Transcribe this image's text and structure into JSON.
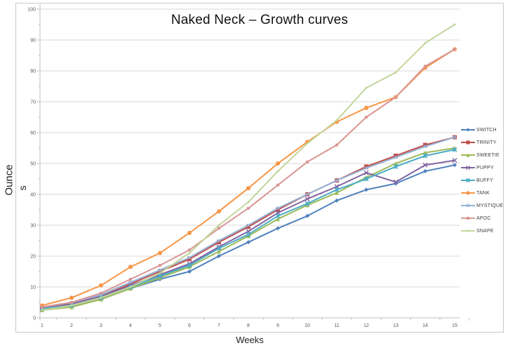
{
  "chart_data": {
    "type": "line",
    "title": "Naked Neck – Growth curves",
    "xlabel": "Weeks",
    "ylabel": "Ounces",
    "ylabel_lines": [
      "Ounce",
      "s"
    ],
    "ylim": [
      0,
      100
    ],
    "y_ticks": [
      0,
      10,
      20,
      30,
      40,
      50,
      60,
      70,
      80,
      90,
      100
    ],
    "x_ticks": [
      "1",
      "2",
      "3",
      "4",
      "5",
      "6",
      "7",
      "8",
      "9",
      "10",
      "11",
      "12",
      "13",
      "14",
      "15"
    ],
    "grid": "horizontal-major",
    "legend_position": "right",
    "categories": [
      1,
      2,
      3,
      4,
      5,
      6,
      7,
      8,
      9,
      10,
      11,
      12,
      13,
      14,
      15
    ],
    "series": [
      {
        "name": "SWITCH",
        "color": "#4F81BD",
        "marker": "diamond",
        "values": [
          2.5,
          4,
          6,
          9.5,
          12.5,
          15,
          20,
          24.5,
          29,
          33,
          38,
          41.5,
          43.5,
          47.5,
          49.5
        ]
      },
      {
        "name": "TRINITY",
        "color": "#C0504D",
        "marker": "square",
        "values": [
          3.5,
          4.5,
          7,
          11,
          15,
          19,
          24.5,
          29.5,
          35,
          40,
          44.5,
          49,
          52.5,
          56,
          58.5
        ]
      },
      {
        "name": "SWEETIE",
        "color": "#9BBB59",
        "marker": "triangle",
        "values": [
          2.5,
          3.5,
          6,
          9.5,
          13,
          16.5,
          21.5,
          26.5,
          32,
          36.5,
          40.5,
          45.5,
          50,
          53.5,
          55
        ]
      },
      {
        "name": "PUPPY",
        "color": "#8064A2",
        "marker": "x",
        "values": [
          3,
          4.5,
          7,
          10.5,
          14,
          17.5,
          23,
          28,
          34,
          38.5,
          42.5,
          47,
          44,
          49.5,
          51
        ]
      },
      {
        "name": "BUFFY",
        "color": "#4BACC6",
        "marker": "asterisk",
        "values": [
          3,
          4,
          6.5,
          10,
          13.5,
          17,
          22.5,
          27,
          33,
          37,
          41.5,
          45,
          49,
          52.5,
          54.5
        ]
      },
      {
        "name": "TANK",
        "color": "#F79646",
        "marker": "circle",
        "values": [
          4,
          6.5,
          10.5,
          16.5,
          21,
          27.5,
          34.5,
          42,
          50,
          57,
          63.5,
          68,
          71.5,
          81,
          87
        ]
      },
      {
        "name": "MYSTIQUE",
        "color": "#95B3D7",
        "marker": "x-small",
        "values": [
          3.5,
          5,
          7.5,
          11.5,
          15.5,
          19.5,
          25,
          30,
          35.5,
          40,
          44.5,
          48.5,
          52,
          55.5,
          58.5
        ]
      },
      {
        "name": "APOC",
        "color": "#D99694",
        "marker": "square-small",
        "values": [
          3.5,
          5,
          8,
          12.5,
          17,
          22,
          29,
          35.5,
          43,
          50.5,
          56,
          65,
          71.5,
          81.5,
          87
        ]
      },
      {
        "name": "SNAPE",
        "color": "#C3D69B",
        "marker": "diamond-small",
        "values": [
          2.5,
          4,
          6.5,
          10,
          14.5,
          21,
          30,
          37.5,
          47.5,
          56.5,
          64,
          74.5,
          79.5,
          89,
          95
        ]
      }
    ],
    "colors": {
      "gridline": "#D9D9D9",
      "axis": "#BFBFBF",
      "tick_text": "#595959",
      "frame_border": "#C9C9C9"
    }
  }
}
